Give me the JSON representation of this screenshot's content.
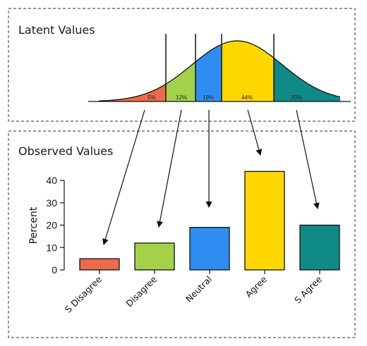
{
  "latent_panel": {
    "title": "Latent Values"
  },
  "observed_panel": {
    "title": "Observed Values"
  },
  "categories": [
    {
      "label": "S Disagree",
      "percent_label": "5%",
      "color": "#EE6A4C"
    },
    {
      "label": "Disagree",
      "percent_label": "12%",
      "color": "#A3D24A"
    },
    {
      "label": "Neutral",
      "percent_label": "19%",
      "color": "#2F8DF2"
    },
    {
      "label": "Agree",
      "percent_label": "44%",
      "color": "#FFD700"
    },
    {
      "label": "S Agree",
      "percent_label": "20%",
      "color": "#0F8A86"
    }
  ],
  "chart_data": {
    "type": "bar",
    "categories": [
      "S Disagree",
      "Disagree",
      "Neutral",
      "Agree",
      "S Agree"
    ],
    "values": [
      5,
      12,
      19,
      44,
      20
    ],
    "ylabel": "Percent",
    "ylim": [
      0,
      40
    ],
    "yticks": [
      "0",
      "10",
      "20",
      "30",
      "40"
    ],
    "colors": [
      "#EE6A4C",
      "#A3D24A",
      "#2F8DF2",
      "#FFD700",
      "#0F8A86"
    ]
  }
}
